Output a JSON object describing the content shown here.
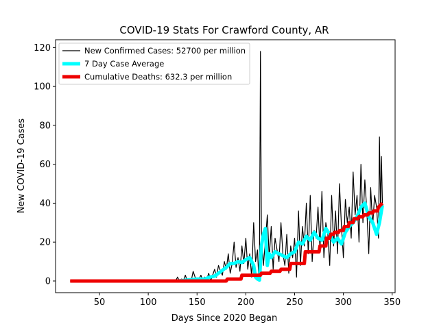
{
  "chart_data": {
    "type": "line",
    "title": "COVID-19 Stats For Crawford County, AR",
    "xlabel": "Days Since 2020 Began",
    "ylabel": "New COVID-19 Cases",
    "xlim": [
      5,
      353
    ],
    "ylim": [
      -6,
      124
    ],
    "xticks": [
      50,
      100,
      150,
      200,
      250,
      300,
      350
    ],
    "yticks": [
      0,
      20,
      40,
      60,
      80,
      100,
      120
    ],
    "legend_position": "upper-left",
    "grid": false,
    "series": [
      {
        "name": "New Confirmed Cases: 52700 per million",
        "color": "#000000",
        "x": [
          20,
          40,
          60,
          80,
          100,
          120,
          128,
          130,
          132,
          134,
          136,
          138,
          140,
          142,
          144,
          146,
          148,
          150,
          152,
          154,
          156,
          158,
          160,
          162,
          164,
          166,
          168,
          170,
          172,
          174,
          176,
          178,
          180,
          182,
          184,
          186,
          188,
          190,
          192,
          194,
          196,
          198,
          200,
          202,
          204,
          206,
          208,
          210,
          212,
          213,
          214,
          215,
          216,
          218,
          220,
          222,
          224,
          226,
          228,
          230,
          232,
          234,
          236,
          238,
          240,
          242,
          244,
          246,
          248,
          250,
          252,
          254,
          256,
          258,
          260,
          262,
          264,
          266,
          268,
          270,
          272,
          274,
          276,
          278,
          280,
          282,
          284,
          286,
          288,
          290,
          292,
          294,
          296,
          298,
          300,
          302,
          304,
          306,
          308,
          310,
          312,
          314,
          316,
          318,
          320,
          322,
          324,
          326,
          328,
          330,
          332,
          334,
          336,
          337,
          338,
          339,
          340
        ],
        "y": [
          0,
          0,
          0,
          0,
          0,
          0,
          0,
          2,
          0,
          1,
          0,
          3,
          0,
          1,
          0,
          5,
          2,
          0,
          1,
          3,
          0,
          2,
          1,
          4,
          0,
          3,
          6,
          2,
          8,
          5,
          3,
          10,
          6,
          14,
          4,
          9,
          20,
          7,
          12,
          5,
          18,
          9,
          22,
          6,
          14,
          2,
          30,
          10,
          16,
          4,
          12,
          118,
          25,
          8,
          20,
          34,
          12,
          28,
          6,
          22,
          16,
          10,
          30,
          14,
          8,
          24,
          4,
          18,
          12,
          22,
          2,
          36,
          8,
          28,
          18,
          40,
          14,
          44,
          10,
          26,
          22,
          38,
          16,
          46,
          12,
          30,
          24,
          8,
          44,
          18,
          36,
          14,
          50,
          28,
          12,
          42,
          30,
          38,
          22,
          56,
          34,
          44,
          20,
          60,
          30,
          52,
          36,
          14,
          48,
          28,
          44,
          38,
          22,
          74,
          36,
          64,
          40
        ]
      },
      {
        "name": "7 Day Case Average",
        "color": "#00ffff",
        "x": [
          130,
          140,
          150,
          158,
          163,
          168,
          172,
          176,
          180,
          184,
          188,
          192,
          196,
          200,
          204,
          206,
          208,
          210,
          212,
          214,
          216,
          218,
          220,
          222,
          224,
          226,
          230,
          234,
          238,
          242,
          246,
          250,
          254,
          258,
          262,
          266,
          270,
          274,
          278,
          282,
          286,
          290,
          294,
          298,
          302,
          306,
          310,
          314,
          318,
          322,
          326,
          330,
          334,
          337,
          340
        ],
        "y": [
          0,
          0.5,
          1,
          1,
          2,
          2.5,
          4,
          5.5,
          7,
          9,
          9,
          10,
          9.5,
          11,
          12,
          10,
          8,
          2,
          1,
          0.5,
          18,
          24,
          27,
          8,
          14,
          12,
          15,
          14,
          13,
          12,
          14,
          15,
          20,
          19,
          23,
          21,
          25,
          22,
          21,
          27,
          24,
          20,
          22,
          19,
          25,
          28,
          30,
          33,
          38,
          40,
          33,
          30,
          24,
          30,
          39
        ]
      },
      {
        "name": "Cumulative Deaths: 632.3 per million",
        "color": "#ee0000",
        "x": [
          20,
          180,
          181,
          195,
          196,
          215,
          216,
          225,
          226,
          235,
          236,
          245,
          246,
          260,
          261,
          275,
          276,
          282,
          283,
          286,
          287,
          290,
          291,
          295,
          296,
          300,
          301,
          305,
          306,
          310,
          311,
          315,
          316,
          320,
          321,
          325,
          326,
          330,
          331,
          335,
          336,
          340
        ],
        "y": [
          0,
          0,
          1,
          1,
          3,
          3,
          4,
          4,
          5,
          5,
          6,
          6,
          9,
          9,
          15,
          15,
          18,
          18,
          22,
          22,
          24,
          24,
          25,
          25,
          26,
          26,
          28,
          28,
          30,
          30,
          32,
          32,
          33,
          33,
          34,
          34,
          35,
          35,
          36,
          36,
          38,
          40
        ]
      }
    ]
  }
}
